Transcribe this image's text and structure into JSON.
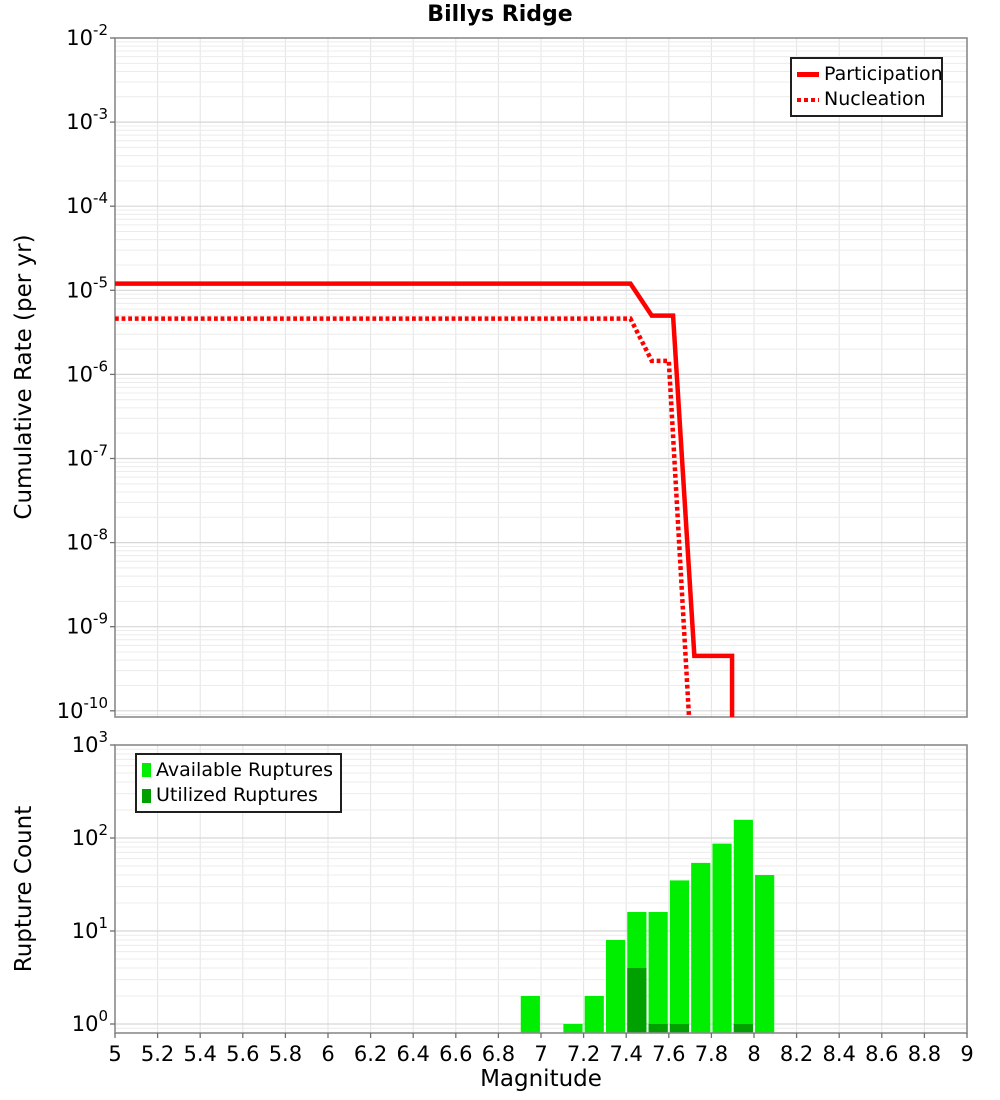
{
  "chart_data": [
    {
      "type": "line",
      "title": "Billys Ridge",
      "ylabel": "Cumulative Rate (per yr)",
      "yscale": "log",
      "ylim": [
        1e-10,
        0.01
      ],
      "xlim": [
        5,
        9
      ],
      "grid": true,
      "legend_position": "top-right",
      "y_tick_exponents": [
        -2,
        -3,
        -4,
        -5,
        -6,
        -7,
        -8,
        -9,
        -10
      ],
      "series": [
        {
          "name": "Participation",
          "style": "solid",
          "color": "#ff0000",
          "line_width": 4.5,
          "points": [
            [
              5.0,
              1.2e-05
            ],
            [
              7.42,
              1.2e-05
            ],
            [
              7.52,
              5e-06
            ],
            [
              7.62,
              5e-06
            ],
            [
              7.72,
              4.5e-10
            ],
            [
              7.897,
              4.5e-10
            ],
            [
              7.897,
              8e-11
            ]
          ]
        },
        {
          "name": "Nucleation",
          "style": "dotted",
          "color": "#ff0000",
          "line_width": 4.5,
          "points": [
            [
              5.0,
              4.6e-06
            ],
            [
              7.42,
              4.6e-06
            ],
            [
              7.52,
              1.45e-06
            ],
            [
              7.6,
              1.45e-06
            ],
            [
              7.7,
              5e-11
            ]
          ]
        }
      ]
    },
    {
      "type": "bar",
      "ylabel": "Rupture Count",
      "xlabel": "Magnitude",
      "yscale": "log",
      "ylim": [
        0.8,
        1000
      ],
      "xlim": [
        5,
        9
      ],
      "bar_width": 0.09,
      "grid": true,
      "legend_position": "top-left",
      "y_tick_exponents": [
        3,
        2,
        1,
        0
      ],
      "x_tick_labels": [
        "5",
        "5.2",
        "5.4",
        "5.6",
        "5.8",
        "6",
        "6.2",
        "6.4",
        "6.6",
        "6.8",
        "7",
        "7.2",
        "7.4",
        "7.6",
        "7.8",
        "8",
        "8.2",
        "8.4",
        "8.6",
        "8.8",
        "9"
      ],
      "series": [
        {
          "name": "Available Ruptures",
          "color": "#00ee00",
          "categories": [
            6.95,
            7.15,
            7.25,
            7.35,
            7.45,
            7.55,
            7.65,
            7.75,
            7.85,
            7.95,
            8.05
          ],
          "values": [
            2,
            1,
            2,
            8,
            16,
            16,
            35,
            54,
            87,
            157,
            40
          ]
        },
        {
          "name": "Utilized Ruptures",
          "color": "#00a000",
          "categories": [
            7.45,
            7.55,
            7.65,
            7.95
          ],
          "values": [
            4,
            1,
            1,
            1
          ]
        }
      ]
    }
  ],
  "style": {
    "grid_minor": "#ececec",
    "grid_major": "#d6d6d6",
    "grid_vertical": "#e4e4e4",
    "frame": "#8a8a8a",
    "tick_color": "#6e6e6e",
    "text_color": "#000000",
    "background": "#ffffff"
  }
}
